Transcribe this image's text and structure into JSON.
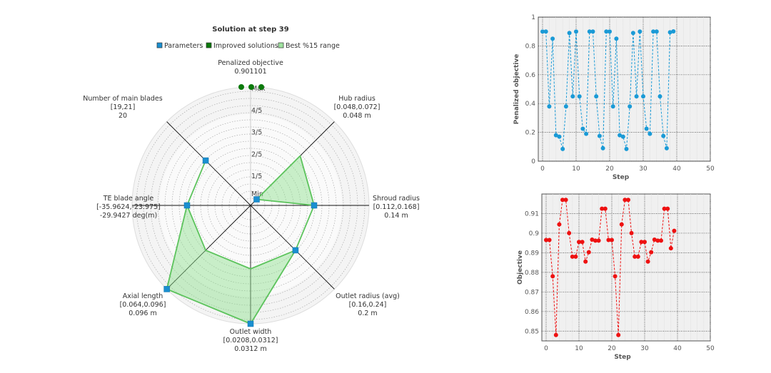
{
  "chart_data": [
    {
      "type": "radar",
      "title": "Solution at step 39",
      "legend": {
        "placement": "top",
        "items": [
          {
            "label": "Parameters",
            "color": "#1a8fd0"
          },
          {
            "label": "Improved solutions",
            "color": "#0a7a0a"
          },
          {
            "label": "Best %15 range",
            "color": "#9fe39f"
          }
        ]
      },
      "levels": [
        "Min",
        "1/5",
        "2/5",
        "3/5",
        "4/5",
        "Max"
      ],
      "axes": [
        {
          "name": "Penalized objective",
          "range": "",
          "value": "0.901101",
          "norm": 1.0
        },
        {
          "name": "Hub radius",
          "range": "[0.048,0.072]",
          "value": "0.048 m",
          "norm": 0.0,
          "best": [
            0.0,
            0.56
          ]
        },
        {
          "name": "Shroud radius",
          "range": "[0.112,0.168]",
          "value": "0.14 m",
          "norm": 0.5,
          "best": [
            0.5,
            0.5
          ]
        },
        {
          "name": "Outlet radius (avg)",
          "range": "[0.16,0.24]",
          "value": "0.2 m",
          "norm": 0.5,
          "best": [
            0.5,
            0.5
          ]
        },
        {
          "name": "Outlet width",
          "range": "[0.0208,0.0312]",
          "value": "0.0312 m",
          "norm": 1.0,
          "best": [
            0.5,
            1.0
          ]
        },
        {
          "name": "Axial length",
          "range": "[0.064,0.096]",
          "value": "0.096 m",
          "norm": 1.0,
          "best": [
            0.5,
            1.0
          ]
        },
        {
          "name": "TE blade angle",
          "range": "[-35.9624,-23.975]",
          "value": "-29.9427 deg(m)",
          "norm": 0.5,
          "best": [
            0.5,
            0.5
          ]
        },
        {
          "name": "Number of main blades",
          "range": "[19,21]",
          "value": "20",
          "norm": 0.5,
          "best": [
            0.5,
            0.5
          ]
        }
      ],
      "improved_solutions_norm": [
        1.0,
        1.0,
        1.0
      ]
    },
    {
      "type": "line",
      "xlabel": "Step",
      "ylabel": "Penalized objective",
      "xlim": [
        0,
        50
      ],
      "ylim": [
        0,
        1
      ],
      "xticks": [
        "0",
        "10",
        "20",
        "30",
        "40",
        "50"
      ],
      "yticks": [
        "0",
        "0.2",
        "0.4",
        "0.6",
        "0.8",
        "1"
      ],
      "grid": true,
      "color": "#1a9ad6",
      "x": [
        0,
        1,
        2,
        3,
        4,
        5,
        6,
        7,
        8,
        9,
        10,
        11,
        12,
        13,
        14,
        15,
        16,
        17,
        18,
        19,
        20,
        21,
        22,
        23,
        24,
        25,
        26,
        27,
        28,
        29,
        30,
        31,
        32,
        33,
        34,
        35,
        36,
        37,
        38,
        39
      ],
      "values": [
        0.9,
        0.9,
        0.38,
        0.85,
        0.18,
        0.17,
        0.085,
        0.38,
        0.89,
        0.45,
        0.9,
        0.45,
        0.225,
        0.19,
        0.9,
        0.9,
        0.45,
        0.175,
        0.09,
        0.9,
        0.9,
        0.38,
        0.85,
        0.18,
        0.17,
        0.085,
        0.38,
        0.89,
        0.45,
        0.9,
        0.45,
        0.225,
        0.19,
        0.9,
        0.9,
        0.45,
        0.175,
        0.09,
        0.895,
        0.901
      ]
    },
    {
      "type": "line",
      "xlabel": "Step",
      "ylabel": "Objective",
      "xlim": [
        0,
        50
      ],
      "ylim": [
        0.845,
        0.92
      ],
      "xticks": [
        "0",
        "10",
        "20",
        "30",
        "40",
        "50"
      ],
      "yticks": [
        "0.85",
        "0.86",
        "0.87",
        "0.88",
        "0.89",
        "0.9",
        "0.91"
      ],
      "grid": true,
      "color": "#ee1111",
      "x": [
        0,
        1,
        2,
        3,
        4,
        5,
        6,
        7,
        8,
        9,
        10,
        11,
        12,
        13,
        14,
        15,
        16,
        17,
        18,
        19,
        20,
        21,
        22,
        23,
        24,
        25,
        26,
        27,
        28,
        29,
        30,
        31,
        32,
        33,
        34,
        35,
        36,
        37,
        38,
        39
      ],
      "values": [
        0.8965,
        0.8965,
        0.878,
        0.848,
        0.9045,
        0.917,
        0.917,
        0.9,
        0.888,
        0.888,
        0.8955,
        0.8955,
        0.8855,
        0.8903,
        0.8967,
        0.8962,
        0.8962,
        0.9125,
        0.9125,
        0.8965,
        0.8965,
        0.878,
        0.848,
        0.9045,
        0.917,
        0.917,
        0.9,
        0.888,
        0.888,
        0.8955,
        0.8955,
        0.8855,
        0.8903,
        0.8967,
        0.8962,
        0.8962,
        0.9125,
        0.9125,
        0.8923,
        0.9012
      ]
    }
  ]
}
